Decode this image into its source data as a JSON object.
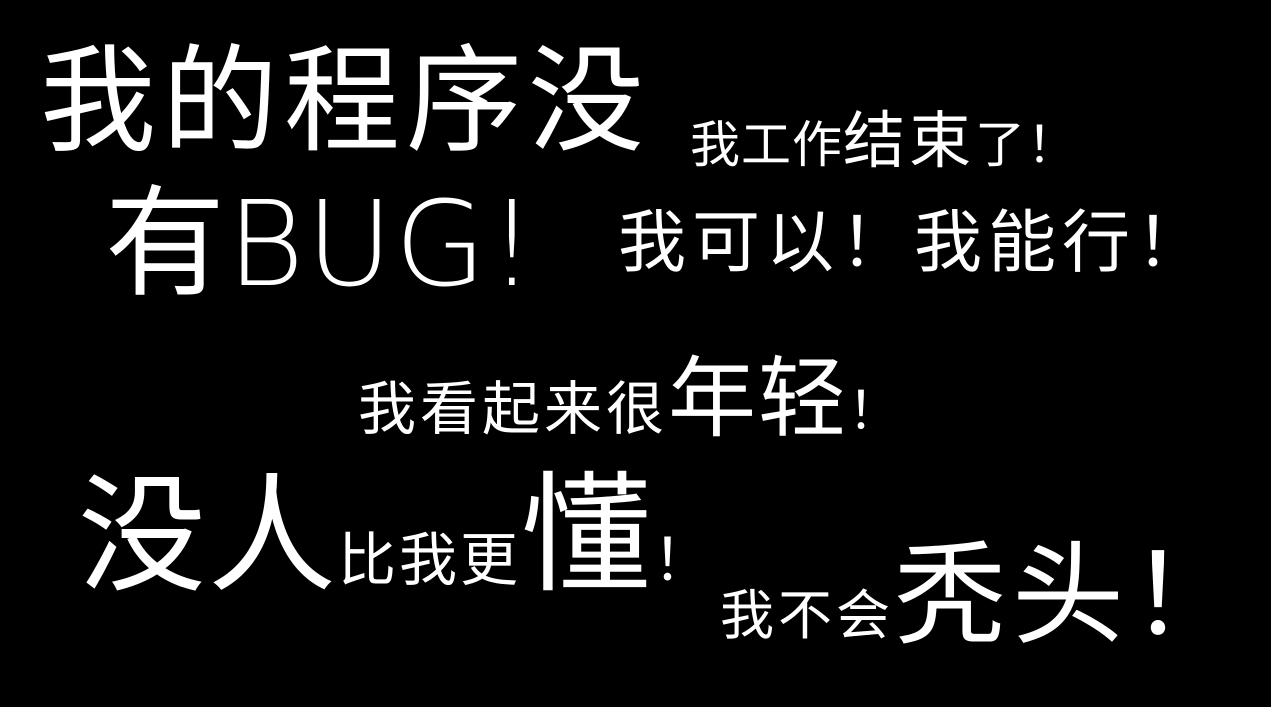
{
  "background_color": "#000000",
  "text_color": "#ffffff",
  "phrases": {
    "p1": {
      "main": "我的程序没",
      "tail_a": "我工作",
      "tail_b": "结束",
      "tail_c": "了！"
    },
    "p2": {
      "a": "有",
      "b": "BUG!",
      "c": "我可以！我能行！"
    },
    "p3": {
      "a": "我看起来很",
      "b": "年轻",
      "c": "！"
    },
    "p4": {
      "a": "没人",
      "b": "比我更",
      "c": "懂",
      "d": "！"
    },
    "p5": {
      "a": "我不会",
      "b": "秃头！"
    }
  }
}
